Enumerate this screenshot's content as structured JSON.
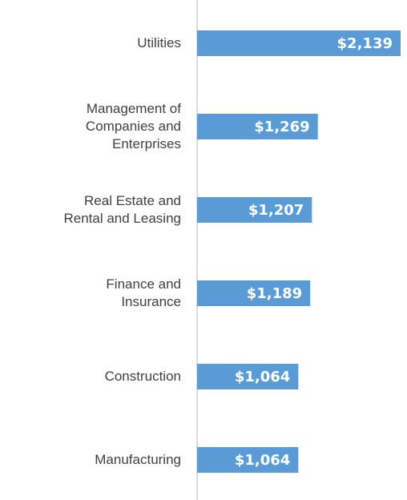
{
  "chart_data": {
    "type": "bar",
    "orientation": "horizontal",
    "categories": [
      "Utilities",
      "Management of\nCompanies and\nEnterprises",
      "Real Estate and\nRental and Leasing",
      "Finance and\nInsurance",
      "Construction",
      "Manufacturing"
    ],
    "values": [
      2139,
      1269,
      1207,
      1189,
      1064,
      1064
    ],
    "value_labels": [
      "$2,139",
      "$1,269",
      "$1,207",
      "$1,189",
      "$1,064",
      "$1,064"
    ],
    "color": "#5b9bd5"
  }
}
